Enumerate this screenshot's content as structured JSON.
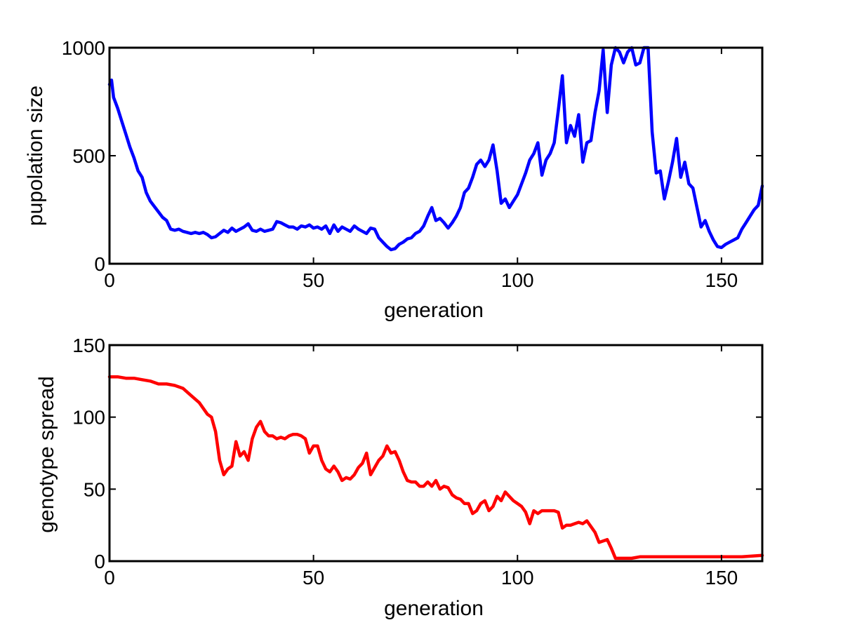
{
  "chart_data": [
    {
      "type": "line",
      "xlabel": "generation",
      "ylabel": "pupolation size",
      "xlim": [
        0,
        160
      ],
      "ylim": [
        0,
        1000
      ],
      "xticks": [
        0,
        50,
        100,
        150
      ],
      "yticks": [
        0,
        500,
        1000
      ],
      "grid": false,
      "series": [
        {
          "color": "#0000ff",
          "x": [
            0,
            0.5,
            1,
            2,
            3,
            4,
            5,
            6,
            7,
            8,
            9,
            10,
            11,
            12,
            13,
            14,
            15,
            16,
            17,
            18,
            19,
            20,
            21,
            22,
            23,
            24,
            25,
            26,
            27,
            28,
            29,
            30,
            31,
            32,
            33,
            34,
            35,
            36,
            37,
            38,
            39,
            40,
            41,
            42,
            43,
            44,
            45,
            46,
            47,
            48,
            49,
            50,
            51,
            52,
            53,
            54,
            55,
            56,
            57,
            58,
            59,
            60,
            61,
            62,
            63,
            64,
            65,
            66,
            67,
            68,
            69,
            70,
            71,
            72,
            73,
            74,
            75,
            76,
            77,
            78,
            79,
            80,
            81,
            82,
            83,
            84,
            85,
            86,
            87,
            88,
            89,
            90,
            91,
            92,
            93,
            94,
            95,
            96,
            97,
            98,
            99,
            100,
            101,
            102,
            103,
            104,
            105,
            106,
            107,
            108,
            109,
            110,
            111,
            112,
            113,
            114,
            115,
            116,
            117,
            118,
            119,
            120,
            121,
            122,
            123,
            124,
            125,
            126,
            127,
            128,
            129,
            130,
            131,
            132,
            133,
            134,
            135,
            136,
            137,
            138,
            139,
            140,
            141,
            142,
            143,
            144,
            145,
            146,
            147,
            148,
            149,
            150,
            151,
            152,
            153,
            154,
            155,
            156,
            157,
            158,
            159,
            160
          ],
          "y": [
            830,
            850,
            770,
            720,
            660,
            600,
            540,
            490,
            430,
            400,
            330,
            290,
            265,
            240,
            215,
            200,
            160,
            155,
            160,
            150,
            145,
            140,
            145,
            140,
            145,
            135,
            120,
            125,
            140,
            155,
            145,
            165,
            150,
            160,
            170,
            185,
            155,
            150,
            160,
            150,
            155,
            160,
            195,
            190,
            180,
            170,
            170,
            160,
            175,
            170,
            180,
            165,
            170,
            160,
            175,
            140,
            180,
            150,
            170,
            160,
            150,
            175,
            160,
            150,
            140,
            165,
            160,
            120,
            100,
            80,
            65,
            70,
            90,
            100,
            115,
            120,
            140,
            150,
            175,
            220,
            260,
            200,
            210,
            190,
            165,
            190,
            220,
            260,
            330,
            350,
            400,
            460,
            480,
            450,
            480,
            550,
            430,
            280,
            300,
            260,
            290,
            320,
            370,
            420,
            480,
            510,
            560,
            410,
            480,
            510,
            560,
            710,
            870,
            560,
            640,
            590,
            690,
            470,
            560,
            570,
            700,
            800,
            990,
            700,
            920,
            1000,
            980,
            930,
            980,
            1000,
            920,
            930,
            1000,
            1000,
            610,
            420,
            430,
            300,
            380,
            470,
            580,
            400,
            470,
            370,
            350,
            260,
            170,
            200,
            150,
            110,
            80,
            75,
            90,
            100,
            110,
            120,
            160,
            190,
            220,
            250,
            270,
            360
          ]
        }
      ]
    },
    {
      "type": "line",
      "xlabel": "generation",
      "ylabel": "genotype spread",
      "xlim": [
        0,
        160
      ],
      "ylim": [
        0,
        150
      ],
      "xticks": [
        0,
        50,
        100,
        150
      ],
      "yticks": [
        0,
        50,
        100,
        150
      ],
      "grid": false,
      "series": [
        {
          "color": "#ff0000",
          "x": [
            0,
            2,
            4,
            6,
            8,
            10,
            12,
            14,
            16,
            18,
            20,
            22,
            24,
            25,
            26,
            27,
            28,
            29,
            30,
            31,
            32,
            33,
            34,
            35,
            36,
            37,
            38,
            39,
            40,
            41,
            42,
            43,
            44,
            45,
            46,
            47,
            48,
            49,
            50,
            51,
            52,
            53,
            54,
            55,
            56,
            57,
            58,
            59,
            60,
            61,
            62,
            63,
            64,
            65,
            66,
            67,
            68,
            69,
            70,
            71,
            72,
            73,
            74,
            75,
            76,
            77,
            78,
            79,
            80,
            81,
            82,
            83,
            84,
            85,
            86,
            87,
            88,
            89,
            90,
            91,
            92,
            93,
            94,
            95,
            96,
            97,
            98,
            99,
            100,
            101,
            102,
            103,
            104,
            105,
            106,
            107,
            108,
            109,
            110,
            111,
            112,
            113,
            114,
            115,
            116,
            117,
            118,
            119,
            120,
            121,
            122,
            123,
            124,
            125,
            126,
            128,
            130,
            135,
            140,
            145,
            150,
            155,
            160
          ],
          "y": [
            128,
            128,
            127,
            127,
            126,
            125,
            123,
            123,
            122,
            120,
            115,
            110,
            102,
            100,
            90,
            70,
            60,
            64,
            66,
            83,
            73,
            76,
            70,
            85,
            93,
            97,
            90,
            87,
            87,
            85,
            86,
            85,
            87,
            88,
            88,
            87,
            85,
            75,
            80,
            80,
            70,
            64,
            62,
            66,
            62,
            56,
            58,
            57,
            60,
            65,
            68,
            75,
            60,
            65,
            70,
            73,
            80,
            75,
            76,
            70,
            62,
            56,
            55,
            55,
            52,
            52,
            55,
            52,
            56,
            50,
            52,
            51,
            46,
            44,
            43,
            40,
            40,
            33,
            35,
            40,
            42,
            35,
            38,
            45,
            42,
            48,
            45,
            42,
            40,
            38,
            34,
            26,
            35,
            33,
            35,
            35,
            35,
            35,
            34,
            23,
            25,
            25,
            26,
            27,
            26,
            28,
            24,
            20,
            13,
            14,
            15,
            9,
            2,
            2,
            2,
            2,
            3,
            3,
            3,
            3,
            3,
            3,
            4
          ]
        }
      ]
    }
  ]
}
